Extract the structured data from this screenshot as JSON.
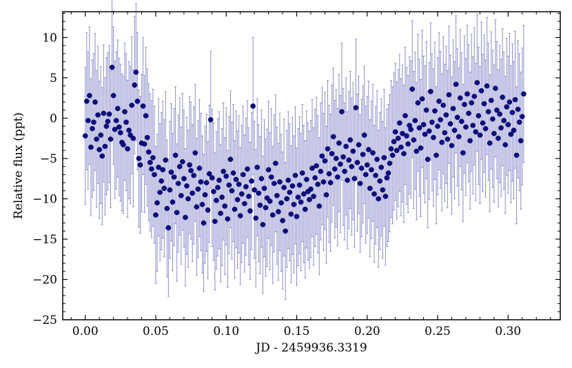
{
  "chart_data": {
    "type": "scatter",
    "title": "",
    "xlabel": "JD - 2459936.3319",
    "ylabel": "Relative flux (ppt)",
    "xlim": [
      -0.016,
      0.337
    ],
    "ylim": [
      -25,
      13.2
    ],
    "xticks": [
      0.0,
      0.05,
      0.1,
      0.15,
      0.2,
      0.25,
      0.3
    ],
    "xtick_labels": [
      "0.00",
      "0.05",
      "0.10",
      "0.15",
      "0.20",
      "0.25",
      "0.30"
    ],
    "yticks": [
      10,
      5,
      0,
      -5,
      -10,
      -15,
      -20,
      -25
    ],
    "ytick_labels": [
      "10",
      "5",
      "0",
      "−5",
      "−10",
      "−15",
      "−20",
      "−25"
    ],
    "grid": false,
    "legend": "none",
    "colors": {
      "point": "#0d0d7a",
      "errorbar": "#8c8ccc"
    },
    "x_step": 0.001,
    "series": [
      {
        "error": 8.5,
        "values": [
          -2.2,
          2.1,
          -0.3,
          2.8,
          -3.6,
          -1.3,
          -0.5,
          2.0,
          -2.6,
          0.4,
          -3.9,
          -2.1,
          -4.7,
          0.6,
          -3.5,
          -1.0,
          -0.4,
          0.5,
          -2.6,
          6.3,
          2.8,
          -1.4,
          -0.3,
          1.2,
          -1.1,
          -1.8,
          -3.0,
          -3.3,
          0.8,
          -0.5,
          -3.8,
          -1.5,
          -2.1,
          1.6,
          -2.5,
          4.1,
          5.7,
          2.1,
          -5.0,
          -5.8,
          -3.1,
          1.5,
          -3.2,
          0.3,
          -2.4,
          -4.2,
          -5.5,
          -6.3,
          -4.9,
          -7.0,
          -12.0,
          -10.5,
          -6.1,
          -9.2,
          -7.8,
          -6.4,
          -8.7,
          -5.2,
          -11.2,
          -13.6,
          -8.9,
          -6.7,
          -10.4,
          -7.3,
          -4.6,
          -11.7,
          -8.1,
          -6.0,
          -9.6,
          -5.4,
          -7.5,
          -12.3,
          -8.4,
          -10.0,
          -5.8,
          -6.5,
          -9.3,
          -7.1,
          -4.3,
          -11.0,
          -8.8,
          -6.2,
          -7.9,
          -10.7,
          -13.0,
          -9.5,
          -8.0,
          -11.4,
          -6.9,
          -0.2,
          -7.4,
          -9.1,
          -12.8,
          -10.2,
          -8.6,
          -7.7,
          -11.8,
          -9.8,
          -6.6,
          -10.9,
          -7.2,
          -12.5,
          -8.3,
          -5.1,
          -9.0,
          -6.8,
          -11.3,
          -7.6,
          -10.1,
          -8.2,
          -12.1,
          -9.4,
          -7.0,
          -10.6,
          -8.5,
          -6.3,
          -9.7,
          -11.5,
          -7.8,
          1.5,
          -8.9,
          -12.4,
          -6.1,
          -9.3,
          -10.8,
          -7.5,
          -13.2,
          -8.7,
          -11.1,
          -9.9,
          -6.4,
          -10.3,
          -7.3,
          -12.0,
          -8.1,
          -5.6,
          -9.6,
          -11.6,
          -7.9,
          -10.5,
          -12.7,
          -8.6,
          -14.0,
          -10.0,
          -7.7,
          -9.2,
          -11.9,
          -8.4,
          -10.7,
          -7.1,
          -12.2,
          -9.8,
          -8.3,
          -10.4,
          -6.8,
          -9.4,
          -11.3,
          -7.6,
          -9.1,
          -10.1,
          -8.8,
          -6.2,
          -9.7,
          -7.4,
          -5.9,
          -8.2,
          -10.9,
          -6.6,
          -4.7,
          -7.9,
          -5.3,
          -9.5,
          -3.8,
          -6.9,
          -8.0,
          -4.4,
          -2.3,
          -6.3,
          -5.0,
          -7.3,
          -3.1,
          -5.7,
          0.8,
          -4.8,
          -6.6,
          -3.5,
          -7.7,
          -5.2,
          -2.7,
          -6.0,
          -4.1,
          -7.5,
          1.3,
          -5.5,
          -3.3,
          -8.1,
          -6.2,
          -4.5,
          -2.1,
          -7.0,
          -5.8,
          -3.9,
          -8.7,
          -6.4,
          -4.3,
          -9.4,
          -7.1,
          -5.1,
          -10.0,
          -7.8,
          -6.1,
          -8.9,
          -4.9,
          -9.7,
          -7.4,
          -6.8,
          -5.6,
          -3.8,
          -4.6,
          -2.9,
          -1.7,
          -4.0,
          -2.5,
          -0.6,
          -3.6,
          -1.9,
          -4.4,
          0.3,
          -2.2,
          -3.2,
          -0.9,
          -1.4,
          3.6,
          -2.7,
          -0.3,
          -4.1,
          1.9,
          -1.2,
          -3.7,
          2.4,
          -0.8,
          -2.0,
          1.0,
          -5.1,
          -1.6,
          3.3,
          -0.5,
          -2.4,
          0.9,
          -4.6,
          -1.0,
          2.1,
          -0.2,
          -3.0,
          1.6,
          -1.8,
          0.4,
          -2.6,
          2.9,
          -0.7,
          -3.4,
          1.2,
          -1.5,
          4.2,
          0.1,
          -2.3,
          2.5,
          -0.4,
          -4.3,
          1.7,
          -1.1,
          3.0,
          0.6,
          -2.8,
          1.9,
          -0.9,
          2.7,
          -1.7,
          4.4,
          0.3,
          -2.1,
          3.4,
          -0.6,
          1.8,
          -1.3,
          4.0,
          0.8,
          -3.1,
          2.2,
          -0.1,
          -1.9,
          3.7,
          1.0,
          -2.5,
          0.5,
          -1.2,
          2.6,
          -0.3,
          -3.3,
          1.4,
          -0.8,
          2.0,
          -2.0,
          0.7,
          -1.5,
          2.3,
          -4.6,
          1.1,
          -0.5,
          -2.8,
          0.2,
          3.0
        ]
      }
    ]
  }
}
